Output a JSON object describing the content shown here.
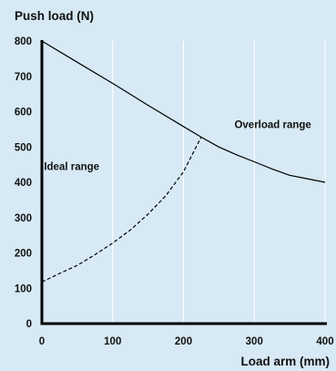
{
  "colors": {
    "background": "#d6e9f4",
    "grid": "#ffffff",
    "axis": "#000000",
    "line": "#000000"
  },
  "chart_data": {
    "type": "line",
    "title": "",
    "ylabel": "Push load (N)",
    "xlabel": "Load arm (mm)",
    "xlim": [
      0,
      400
    ],
    "ylim": [
      0,
      800
    ],
    "xticks": [
      0,
      100,
      200,
      300,
      400
    ],
    "yticks": [
      0,
      100,
      200,
      300,
      400,
      500,
      600,
      700,
      800
    ],
    "grid": "vertical",
    "series": [
      {
        "style": "solid",
        "x": [
          0,
          50,
          100,
          150,
          200,
          225,
          250,
          275,
          300,
          325,
          350,
          375,
          400
        ],
        "y": [
          800,
          740,
          680,
          618,
          558,
          528,
          500,
          478,
          458,
          438,
          420,
          410,
          400
        ]
      },
      {
        "style": "dashed",
        "x": [
          0,
          25,
          50,
          75,
          100,
          125,
          150,
          175,
          200,
          225
        ],
        "y": [
          118,
          142,
          165,
          195,
          228,
          265,
          310,
          362,
          430,
          528
        ]
      }
    ],
    "annotations": [
      {
        "text": "Ideal range",
        "x": 3,
        "y": 435
      },
      {
        "text": "Overload range",
        "x": 272,
        "y": 553
      }
    ]
  }
}
